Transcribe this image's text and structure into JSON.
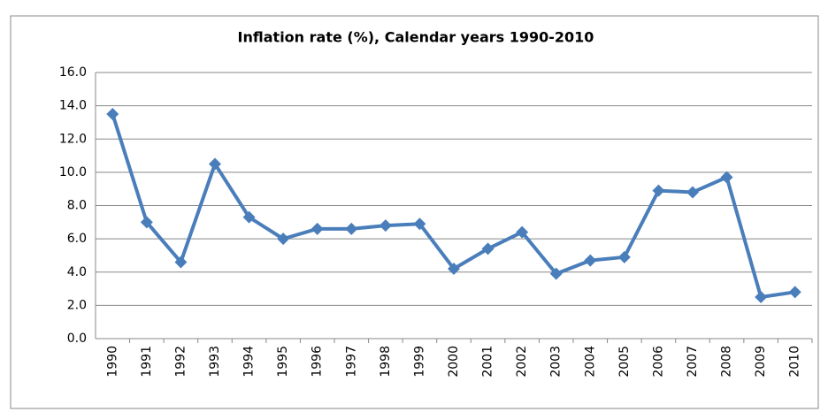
{
  "chart_data": {
    "type": "line",
    "title": "Inflation rate (%), Calendar years 1990-2010",
    "categories": [
      "1990",
      "1991",
      "1992",
      "1993",
      "1994",
      "1995",
      "1996",
      "1997",
      "1998",
      "1999",
      "2000",
      "2001",
      "2002",
      "2003",
      "2004",
      "2005",
      "2006",
      "2007",
      "2008",
      "2009",
      "2010"
    ],
    "series": [
      {
        "name": "Inflation rate (%)",
        "color": "#4a7ebb",
        "values": [
          13.5,
          7.0,
          4.6,
          10.5,
          7.3,
          6.0,
          6.6,
          6.6,
          6.8,
          6.9,
          4.2,
          5.4,
          6.4,
          3.9,
          4.7,
          4.9,
          8.9,
          8.8,
          9.7,
          2.5,
          2.8
        ]
      }
    ],
    "ylim": [
      0,
      16
    ],
    "yticks": [
      {
        "value": 0,
        "label": "0.0"
      },
      {
        "value": 2,
        "label": "2.0"
      },
      {
        "value": 4,
        "label": "4.0"
      },
      {
        "value": 6,
        "label": "6.0"
      },
      {
        "value": 8,
        "label": "8.0"
      },
      {
        "value": 10,
        "label": "10.0"
      },
      {
        "value": 12,
        "label": "12.0"
      },
      {
        "value": 14,
        "label": "14.0"
      },
      {
        "value": 16,
        "label": "16.0"
      }
    ],
    "grid": true
  }
}
